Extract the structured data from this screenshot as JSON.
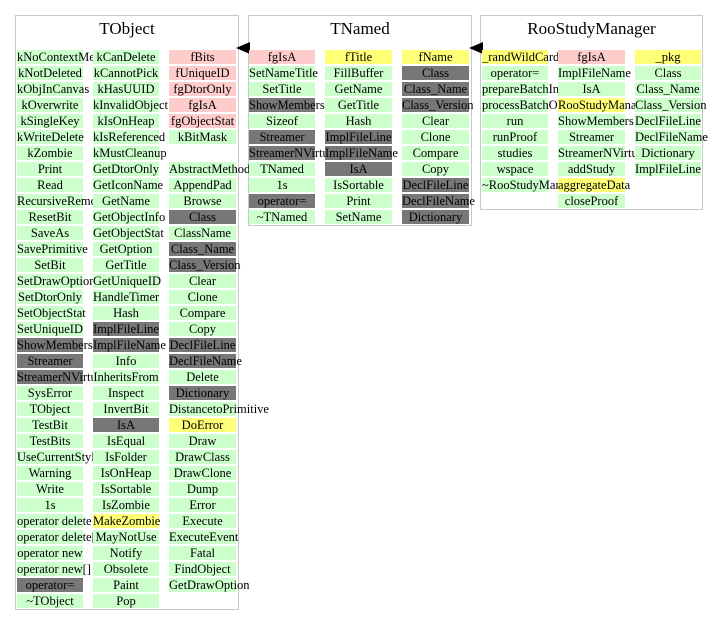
{
  "classes": [
    {
      "name": "TObject",
      "columns": [
        [
          {
            "t": "kNoContextMenu",
            "c": "g"
          },
          {
            "t": "kNotDeleted",
            "c": "g"
          },
          {
            "t": "kObjInCanvas",
            "c": "g"
          },
          {
            "t": "kOverwrite",
            "c": "g"
          },
          {
            "t": "kSingleKey",
            "c": "g"
          },
          {
            "t": "kWriteDelete",
            "c": "g"
          },
          {
            "t": "kZombie",
            "c": "g"
          },
          {
            "t": "Print",
            "c": "g"
          },
          {
            "t": "Read",
            "c": "g"
          },
          {
            "t": "RecursiveRemove",
            "c": "g"
          },
          {
            "t": "ResetBit",
            "c": "g"
          },
          {
            "t": "SaveAs",
            "c": "g"
          },
          {
            "t": "SavePrimitive",
            "c": "g"
          },
          {
            "t": "SetBit",
            "c": "g"
          },
          {
            "t": "SetDrawOption",
            "c": "g"
          },
          {
            "t": "SetDtorOnly",
            "c": "g"
          },
          {
            "t": "SetObjectStat",
            "c": "g"
          },
          {
            "t": "SetUniqueID",
            "c": "g"
          },
          {
            "t": "ShowMembers",
            "c": "d"
          },
          {
            "t": "Streamer",
            "c": "d"
          },
          {
            "t": "StreamerNVirtual",
            "c": "d"
          },
          {
            "t": "SysError",
            "c": "g"
          },
          {
            "t": "TObject",
            "c": "g"
          },
          {
            "t": "TestBit",
            "c": "g"
          },
          {
            "t": "TestBits",
            "c": "g"
          },
          {
            "t": "UseCurrentStyle",
            "c": "g"
          },
          {
            "t": "Warning",
            "c": "g"
          },
          {
            "t": "Write",
            "c": "g"
          },
          {
            "t": "1s",
            "c": "g"
          },
          {
            "t": "operator delete",
            "c": "g"
          },
          {
            "t": "operator delete[]",
            "c": "g"
          },
          {
            "t": "operator new",
            "c": "g"
          },
          {
            "t": "operator new[]",
            "c": "g"
          },
          {
            "t": "operator=",
            "c": "d"
          },
          {
            "t": "~TObject",
            "c": "g"
          }
        ],
        [
          {
            "t": "kCanDelete",
            "c": "g"
          },
          {
            "t": "kCannotPick",
            "c": "g"
          },
          {
            "t": "kHasUUID",
            "c": "g"
          },
          {
            "t": "kInvalidObject",
            "c": "g"
          },
          {
            "t": "kIsOnHeap",
            "c": "g"
          },
          {
            "t": "kIsReferenced",
            "c": "g"
          },
          {
            "t": "kMustCleanup",
            "c": "g"
          },
          {
            "t": "GetDtorOnly",
            "c": "g"
          },
          {
            "t": "GetIconName",
            "c": "g"
          },
          {
            "t": "GetName",
            "c": "g"
          },
          {
            "t": "GetObjectInfo",
            "c": "g"
          },
          {
            "t": "GetObjectStat",
            "c": "g"
          },
          {
            "t": "GetOption",
            "c": "g"
          },
          {
            "t": "GetTitle",
            "c": "g"
          },
          {
            "t": "GetUniqueID",
            "c": "g"
          },
          {
            "t": "HandleTimer",
            "c": "g"
          },
          {
            "t": "Hash",
            "c": "g"
          },
          {
            "t": "ImplFileLine",
            "c": "d"
          },
          {
            "t": "ImplFileName",
            "c": "d"
          },
          {
            "t": "Info",
            "c": "g"
          },
          {
            "t": "InheritsFrom",
            "c": "g"
          },
          {
            "t": "Inspect",
            "c": "g"
          },
          {
            "t": "InvertBit",
            "c": "g"
          },
          {
            "t": "IsA",
            "c": "d"
          },
          {
            "t": "IsEqual",
            "c": "g"
          },
          {
            "t": "IsFolder",
            "c": "g"
          },
          {
            "t": "IsOnHeap",
            "c": "g"
          },
          {
            "t": "IsSortable",
            "c": "g"
          },
          {
            "t": "IsZombie",
            "c": "g"
          },
          {
            "t": "MakeZombie",
            "c": "y"
          },
          {
            "t": "MayNotUse",
            "c": "g"
          },
          {
            "t": "Notify",
            "c": "g"
          },
          {
            "t": "Obsolete",
            "c": "g"
          },
          {
            "t": "Paint",
            "c": "g"
          },
          {
            "t": "Pop",
            "c": "g"
          }
        ],
        [
          {
            "t": "fBits",
            "c": "p"
          },
          {
            "t": "fUniqueID",
            "c": "p"
          },
          {
            "t": "fgDtorOnly",
            "c": "p"
          },
          {
            "t": "fgIsA",
            "c": "p"
          },
          {
            "t": "fgObjectStat",
            "c": "p"
          },
          {
            "t": "kBitMask",
            "c": "g"
          },
          {
            "t": "",
            "c": "none"
          },
          {
            "t": "AbstractMethod",
            "c": "g"
          },
          {
            "t": "AppendPad",
            "c": "g"
          },
          {
            "t": "Browse",
            "c": "g"
          },
          {
            "t": "Class",
            "c": "d"
          },
          {
            "t": "ClassName",
            "c": "g"
          },
          {
            "t": "Class_Name",
            "c": "d"
          },
          {
            "t": "Class_Version",
            "c": "d"
          },
          {
            "t": "Clear",
            "c": "g"
          },
          {
            "t": "Clone",
            "c": "g"
          },
          {
            "t": "Compare",
            "c": "g"
          },
          {
            "t": "Copy",
            "c": "g"
          },
          {
            "t": "DeclFileLine",
            "c": "d"
          },
          {
            "t": "DeclFileName",
            "c": "d"
          },
          {
            "t": "Delete",
            "c": "g"
          },
          {
            "t": "Dictionary",
            "c": "d"
          },
          {
            "t": "DistancetoPrimitive",
            "c": "g"
          },
          {
            "t": "DoError",
            "c": "y"
          },
          {
            "t": "Draw",
            "c": "g"
          },
          {
            "t": "DrawClass",
            "c": "g"
          },
          {
            "t": "DrawClone",
            "c": "g"
          },
          {
            "t": "Dump",
            "c": "g"
          },
          {
            "t": "Error",
            "c": "g"
          },
          {
            "t": "Execute",
            "c": "g"
          },
          {
            "t": "ExecuteEvent",
            "c": "g"
          },
          {
            "t": "Fatal",
            "c": "g"
          },
          {
            "t": "FindObject",
            "c": "g"
          },
          {
            "t": "GetDrawOption",
            "c": "g"
          }
        ]
      ]
    },
    {
      "name": "TNamed",
      "columns": [
        [
          {
            "t": "fgIsA",
            "c": "p"
          },
          {
            "t": "SetNameTitle",
            "c": "g"
          },
          {
            "t": "SetTitle",
            "c": "g"
          },
          {
            "t": "ShowMembers",
            "c": "d"
          },
          {
            "t": "Sizeof",
            "c": "g"
          },
          {
            "t": "Streamer",
            "c": "d"
          },
          {
            "t": "StreamerNVirtual",
            "c": "d"
          },
          {
            "t": "TNamed",
            "c": "g"
          },
          {
            "t": "1s",
            "c": "g"
          },
          {
            "t": "operator=",
            "c": "d"
          },
          {
            "t": "~TNamed",
            "c": "g"
          }
        ],
        [
          {
            "t": "fTitle",
            "c": "y"
          },
          {
            "t": "FillBuffer",
            "c": "g"
          },
          {
            "t": "GetName",
            "c": "g"
          },
          {
            "t": "GetTitle",
            "c": "g"
          },
          {
            "t": "Hash",
            "c": "g"
          },
          {
            "t": "ImplFileLine",
            "c": "d"
          },
          {
            "t": "ImplFileName",
            "c": "d"
          },
          {
            "t": "IsA",
            "c": "d"
          },
          {
            "t": "IsSortable",
            "c": "g"
          },
          {
            "t": "Print",
            "c": "g"
          },
          {
            "t": "SetName",
            "c": "g"
          }
        ],
        [
          {
            "t": "fName",
            "c": "y"
          },
          {
            "t": "Class",
            "c": "d"
          },
          {
            "t": "Class_Name",
            "c": "d"
          },
          {
            "t": "Class_Version",
            "c": "d"
          },
          {
            "t": "Clear",
            "c": "g"
          },
          {
            "t": "Clone",
            "c": "g"
          },
          {
            "t": "Compare",
            "c": "g"
          },
          {
            "t": "Copy",
            "c": "g"
          },
          {
            "t": "DeclFileLine",
            "c": "d"
          },
          {
            "t": "DeclFileName",
            "c": "d"
          },
          {
            "t": "Dictionary",
            "c": "d"
          }
        ]
      ]
    },
    {
      "name": "RooStudyManager",
      "columns": [
        [
          {
            "t": "_randWildCardSpec",
            "c": "y"
          },
          {
            "t": "operator=",
            "c": "g"
          },
          {
            "t": "prepareBatchInput",
            "c": "g"
          },
          {
            "t": "processBatchOutput",
            "c": "g"
          },
          {
            "t": "run",
            "c": "g"
          },
          {
            "t": "runProof",
            "c": "g"
          },
          {
            "t": "studies",
            "c": "g"
          },
          {
            "t": "wspace",
            "c": "g"
          },
          {
            "t": "~RooStudyManager",
            "c": "g"
          }
        ],
        [
          {
            "t": "fgIsA",
            "c": "p"
          },
          {
            "t": "ImplFileName",
            "c": "g"
          },
          {
            "t": "IsA",
            "c": "g"
          },
          {
            "t": "RooStudyManager",
            "c": "y"
          },
          {
            "t": "ShowMembers",
            "c": "g"
          },
          {
            "t": "Streamer",
            "c": "g"
          },
          {
            "t": "StreamerNVirtual",
            "c": "g"
          },
          {
            "t": "addStudy",
            "c": "g"
          },
          {
            "t": "aggregateData",
            "c": "y"
          },
          {
            "t": "closeProof",
            "c": "g"
          }
        ],
        [
          {
            "t": "_pkg",
            "c": "y"
          },
          {
            "t": "Class",
            "c": "g"
          },
          {
            "t": "Class_Name",
            "c": "g"
          },
          {
            "t": "Class_Version",
            "c": "g"
          },
          {
            "t": "DeclFileLine",
            "c": "g"
          },
          {
            "t": "DeclFileName",
            "c": "g"
          },
          {
            "t": "Dictionary",
            "c": "g"
          },
          {
            "t": "ImplFileLine",
            "c": "g"
          }
        ]
      ]
    }
  ]
}
